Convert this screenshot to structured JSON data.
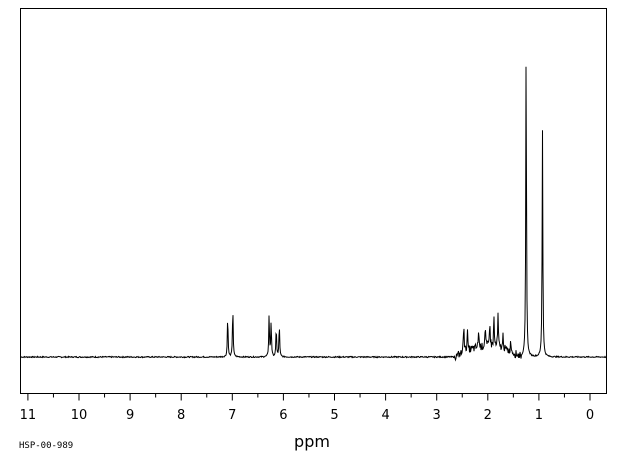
{
  "chart_data": {
    "type": "line",
    "xlabel": "ppm",
    "spectrum_code": "HSP-00-989",
    "x_reversed": true,
    "xlim": [
      11.5,
      -0.3
    ],
    "ylim": [
      0,
      1.13
    ],
    "x_ticks": [
      "11",
      "10",
      "9",
      "8",
      "7",
      "6",
      "5",
      "4",
      "3",
      "2",
      "1",
      "0"
    ],
    "grid": false,
    "colors": {
      "line": "#000000",
      "frame": "#000000"
    },
    "series": [
      {
        "peaks": [
          {
            "ppm": 7.09,
            "height": 0.14
          },
          {
            "ppm": 6.99,
            "height": 0.17
          },
          {
            "ppm": 6.28,
            "height": 0.14
          },
          {
            "ppm": 6.24,
            "height": 0.12
          },
          {
            "ppm": 6.14,
            "height": 0.1
          },
          {
            "ppm": 6.08,
            "height": 0.11
          },
          {
            "ppm": 2.47,
            "height": 0.11
          },
          {
            "ppm": 2.4,
            "height": 0.07
          },
          {
            "ppm": 2.18,
            "height": 0.06
          },
          {
            "ppm": 2.05,
            "height": 0.07
          },
          {
            "ppm": 1.96,
            "height": 0.09
          },
          {
            "ppm": 1.88,
            "height": 0.1
          },
          {
            "ppm": 1.8,
            "height": 0.11
          },
          {
            "ppm": 1.7,
            "height": 0.05
          },
          {
            "ppm": 1.55,
            "height": 0.04
          },
          {
            "ppm": 1.25,
            "height": 1.06
          },
          {
            "ppm": 0.93,
            "height": 0.76
          }
        ]
      }
    ]
  }
}
